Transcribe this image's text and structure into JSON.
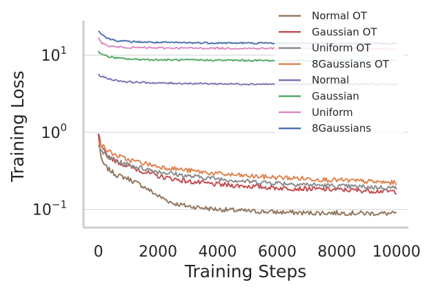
{
  "chart_data": {
    "type": "line",
    "xlabel": "Training Steps",
    "ylabel": "Training Loss",
    "xlim": [
      -500,
      10400
    ],
    "ylim": [
      0.058,
      28
    ],
    "yscale": "log",
    "x_ticks": [
      0,
      2000,
      4000,
      6000,
      8000,
      10000
    ],
    "x_tick_labels": [
      "0",
      "2000",
      "4000",
      "6000",
      "8000",
      "10000"
    ],
    "y_ticks": [
      0.1,
      1,
      10
    ],
    "y_tick_labels": [
      {
        "base": "10",
        "exp": "−1"
      },
      {
        "base": "10",
        "exp": "0"
      },
      {
        "base": "10",
        "exp": "1"
      }
    ],
    "grid": "horizontal",
    "legend_position": "top-right",
    "series": [
      {
        "name": "Normal OT",
        "color": "#937860",
        "x": [
          0,
          100,
          300,
          600,
          1000,
          1500,
          2000,
          2500,
          3000,
          4000,
          5000,
          6000,
          7000,
          8000,
          9000,
          10000
        ],
        "y": [
          0.95,
          0.42,
          0.34,
          0.28,
          0.25,
          0.2,
          0.15,
          0.12,
          0.11,
          0.1,
          0.095,
          0.092,
          0.09,
          0.09,
          0.089,
          0.088
        ]
      },
      {
        "name": "Gaussian OT",
        "color": "#c44e52",
        "x": [
          0,
          100,
          300,
          600,
          1000,
          1500,
          2000,
          3000,
          4000,
          5000,
          6000,
          7000,
          8000,
          9000,
          10000
        ],
        "y": [
          0.98,
          0.62,
          0.5,
          0.42,
          0.36,
          0.31,
          0.27,
          0.23,
          0.21,
          0.2,
          0.19,
          0.185,
          0.18,
          0.175,
          0.17
        ]
      },
      {
        "name": "Uniform OT",
        "color": "#8c8c8c",
        "x": [
          0,
          100,
          300,
          600,
          1000,
          1500,
          2000,
          3000,
          4000,
          5000,
          6000,
          7000,
          8000,
          9000,
          10000
        ],
        "y": [
          0.72,
          0.56,
          0.48,
          0.42,
          0.38,
          0.34,
          0.31,
          0.27,
          0.25,
          0.23,
          0.22,
          0.21,
          0.2,
          0.195,
          0.19
        ]
      },
      {
        "name": "8Gaussians OT",
        "color": "#dd8452",
        "x": [
          0,
          100,
          300,
          600,
          1000,
          1500,
          2000,
          3000,
          4000,
          5000,
          6000,
          7000,
          8000,
          9000,
          10000
        ],
        "y": [
          0.85,
          0.68,
          0.58,
          0.5,
          0.44,
          0.4,
          0.36,
          0.32,
          0.29,
          0.27,
          0.26,
          0.25,
          0.24,
          0.23,
          0.22
        ]
      },
      {
        "name": "Normal",
        "color": "#8172b3",
        "x": [
          0,
          100,
          300,
          600,
          1000,
          2000,
          4000,
          6000,
          8000,
          10000
        ],
        "y": [
          5.6,
          5.3,
          5.0,
          4.7,
          4.5,
          4.35,
          4.25,
          4.2,
          4.2,
          4.2
        ]
      },
      {
        "name": "Gaussian",
        "color": "#55a868",
        "x": [
          0,
          100,
          300,
          600,
          1000,
          2000,
          4000,
          6000,
          8000,
          10000
        ],
        "y": [
          11.2,
          10.4,
          9.6,
          9.2,
          8.9,
          8.7,
          8.6,
          8.5,
          8.5,
          8.4
        ]
      },
      {
        "name": "Uniform",
        "color": "#da8bc3",
        "x": [
          0,
          100,
          300,
          600,
          1000,
          2000,
          4000,
          6000,
          8000,
          10000
        ],
        "y": [
          17.5,
          14.5,
          13.2,
          12.8,
          12.6,
          12.4,
          12.3,
          12.2,
          12.1,
          12.0
        ]
      },
      {
        "name": "8Gaussians",
        "color": "#4c72b0",
        "x": [
          0,
          100,
          300,
          600,
          1000,
          2000,
          4000,
          6000,
          8000,
          10000
        ],
        "y": [
          21,
          19,
          16.5,
          15.5,
          15.0,
          14.6,
          14.4,
          14.3,
          14.2,
          14.2
        ]
      }
    ]
  }
}
